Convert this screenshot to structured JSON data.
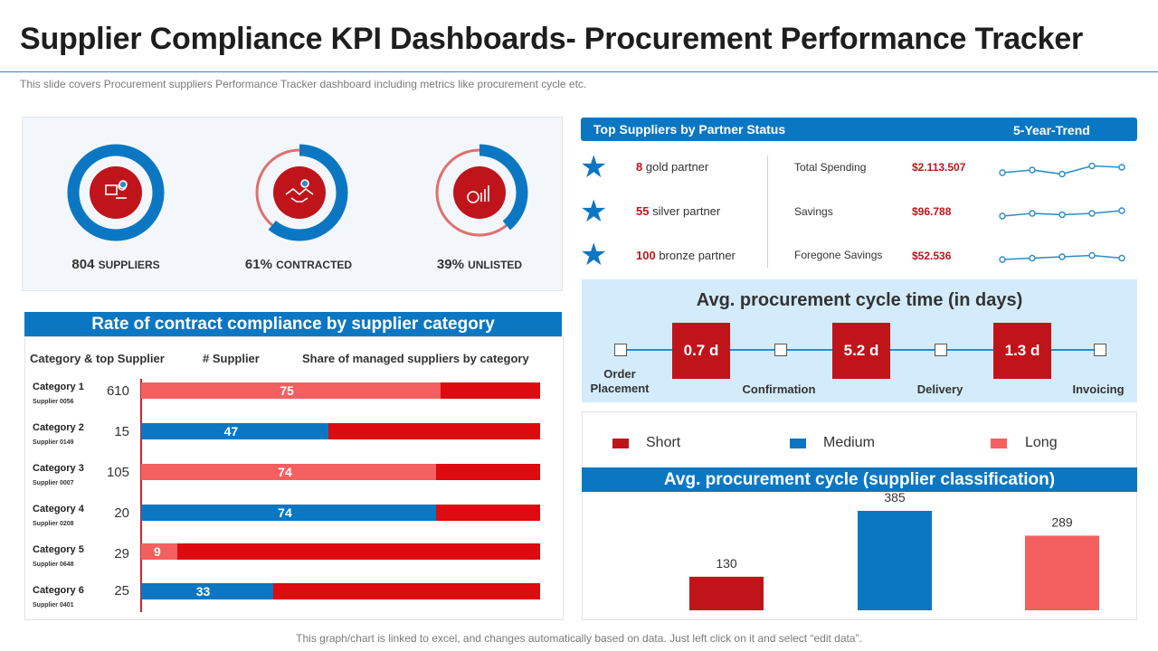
{
  "header": {
    "title": "Supplier Compliance KPI Dashboards- Procurement Performance Tracker",
    "subtitle": "This slide covers Procurement suppliers Performance Tracker dashboard including metrics like procurement cycle etc.",
    "footer": "This graph/chart is linked to excel, and changes automatically based on data. Just left click on it and select “edit data”."
  },
  "colors": {
    "blue": "#0b77c3",
    "red": "#c0141b",
    "bright_red": "#dd0a0f",
    "salmon": "#f4605f",
    "light_blue_bg": "#d3ebfb"
  },
  "summary": {
    "items": [
      {
        "value": "804",
        "label": "SUPPLIERS",
        "icon": "supplier-icon",
        "percent": 100
      },
      {
        "value": "61%",
        "label": "CONTRACTED",
        "icon": "handshake-icon",
        "percent": 61
      },
      {
        "value": "39%",
        "label": "UNLISTED",
        "icon": "analytics-icon",
        "percent": 39
      }
    ]
  },
  "compliance": {
    "title": "Rate of contract compliance by supplier category",
    "col_category": "Category & top Supplier",
    "col_supplier": "# Supplier",
    "col_share": "Share of managed suppliers by category",
    "rows": [
      {
        "category": "Category 1",
        "supplier": "Supplier 0056",
        "count": "610",
        "share": 75,
        "style": "salmon"
      },
      {
        "category": "Category 2",
        "supplier": "Supplier 0149",
        "count": "15",
        "share": 47,
        "style": "blue"
      },
      {
        "category": "Category 3",
        "supplier": "Supplier 0007",
        "count": "105",
        "share": 74,
        "style": "salmon"
      },
      {
        "category": "Category 4",
        "supplier": "Supplier 0208",
        "count": "20",
        "share": 74,
        "style": "blue"
      },
      {
        "category": "Category 5",
        "supplier": "Supplier 0648",
        "count": "29",
        "share": 9,
        "style": "salmon"
      },
      {
        "category": "Category 6",
        "supplier": "Supplier 0401",
        "count": "25",
        "share": 33,
        "style": "blue"
      }
    ]
  },
  "top_suppliers": {
    "title": "Top Suppliers by Partner Status",
    "trend_title": "5-Year-Trend",
    "partners": [
      {
        "count": "8",
        "label": "gold partner",
        "icon": "star-icon"
      },
      {
        "count": "55",
        "label": "silver partner",
        "icon": "star-icon"
      },
      {
        "count": "100",
        "label": "bronze partner",
        "icon": "star-icon"
      }
    ],
    "metrics": [
      {
        "label": "Total Spending",
        "value": "$2.113.507",
        "trend": [
          3,
          5,
          2,
          8,
          7
        ]
      },
      {
        "label": "Savings",
        "value": "$96.788",
        "trend": [
          3,
          5,
          4,
          5,
          7
        ]
      },
      {
        "label": "Foregone Savings",
        "value": "$52.536",
        "trend": [
          3,
          4,
          5,
          6,
          4
        ]
      }
    ]
  },
  "cycle_time": {
    "title": "Avg. procurement cycle time (in days)",
    "steps": [
      "Order Placement",
      "Confirmation",
      "Delivery",
      "Invoicing"
    ],
    "durations": [
      "0.7 d",
      "5.2 d",
      "1.3 d"
    ]
  },
  "classification": {
    "legend": [
      {
        "label": "Short",
        "color": "#c0141b"
      },
      {
        "label": "Medium",
        "color": "#0b77c3"
      },
      {
        "label": "Long",
        "color": "#f4605f"
      }
    ]
  },
  "chart_data": {
    "type": "bar",
    "title": "Avg. procurement cycle (supplier classification)",
    "categories": [
      "Short",
      "Medium",
      "Long"
    ],
    "values": [
      130,
      385,
      289
    ],
    "colors": [
      "#c0141b",
      "#0b77c3",
      "#f4605f"
    ],
    "xlabel": "",
    "ylabel": "",
    "ylim": [
      0,
      420
    ]
  }
}
